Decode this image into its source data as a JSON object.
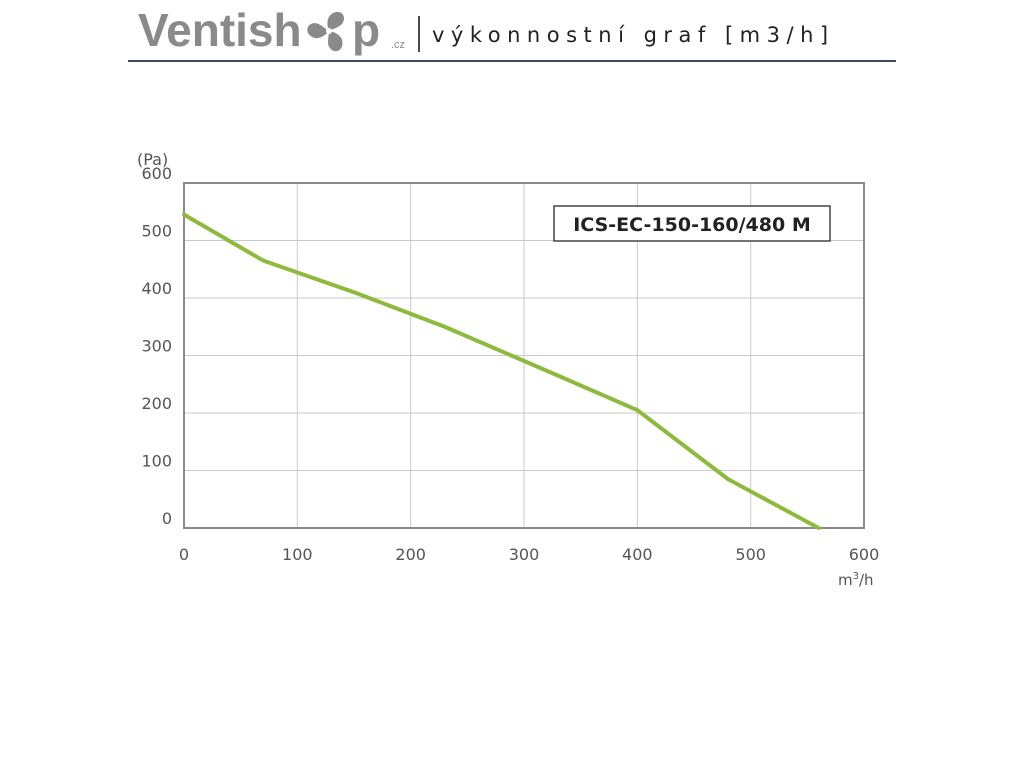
{
  "header": {
    "logo_part1": "Ventish",
    "logo_part2": "p",
    "logo_suffix": ".cz",
    "subtitle": "výkonnostní graf [m3/h]"
  },
  "colors": {
    "curve": "#8dba3c",
    "logo_gray": "#8a8a8a",
    "grid": "#c9c9c9",
    "frame": "#8a8a8a",
    "tick_text": "#555555"
  },
  "icons": {
    "logo_mark": "fan-icon"
  },
  "chart_data": {
    "type": "line",
    "title": "ICS-EC-150-160/480 M",
    "xlabel": "",
    "ylabel": "(Pa)",
    "x_unit_base": "m",
    "x_unit_exp": "3",
    "x_unit_tail": "/h",
    "xlim": [
      0,
      600
    ],
    "ylim": [
      0,
      600
    ],
    "xticks": [
      0,
      100,
      200,
      300,
      400,
      500,
      600
    ],
    "yticks": [
      0,
      100,
      200,
      300,
      400,
      500,
      600
    ],
    "grid": true,
    "series": [
      {
        "x": [
          0,
          70,
          150,
          230,
          330,
          400,
          480,
          560
        ],
        "y": [
          545,
          465,
          410,
          350,
          265,
          205,
          85,
          0
        ]
      }
    ]
  }
}
